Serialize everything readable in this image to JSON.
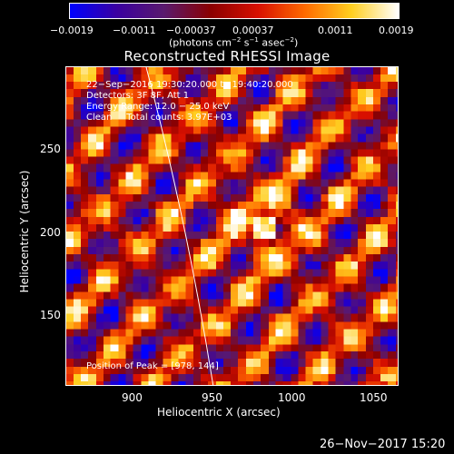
{
  "colorbar": {
    "ticks": [
      "−0.0019",
      "−0.0011",
      "−0.00037",
      "0.00037",
      "0.0011",
      "0.0019"
    ],
    "units_prefix": "(photons cm",
    "units_sup1": "−2",
    "units_mid1": " s",
    "units_sup2": "−1",
    "units_mid2": " asec",
    "units_sup3": "−2",
    "units_suffix": ")",
    "colors": [
      "#0000ff",
      "#3b00a0",
      "#5a1a6e",
      "#8b0000",
      "#d81000",
      "#ff6a00",
      "#ffcf20",
      "#ffffff"
    ]
  },
  "title": "Reconstructed RHESSI Image",
  "info": {
    "time_range": "22−Sep−2016 19:30:20.000 to 19:40:20.000",
    "detectors": "Detectors: 3F 8F, Att 1",
    "energy": "Energy Range: 12.0 − 25.0 keV",
    "clean": "Clean     Total counts: 3.97E+03",
    "peak": "Position of Peak = [978, 144]"
  },
  "axes": {
    "xlabel": "Heliocentric X (arcsec)",
    "ylabel": "Heliocentric Y (arcsec)",
    "xticks": [
      "900",
      "950",
      "1000",
      "1050"
    ],
    "yticks": [
      "250",
      "200",
      "150"
    ]
  },
  "timestamp": "26−Nov−2017 15:20"
}
